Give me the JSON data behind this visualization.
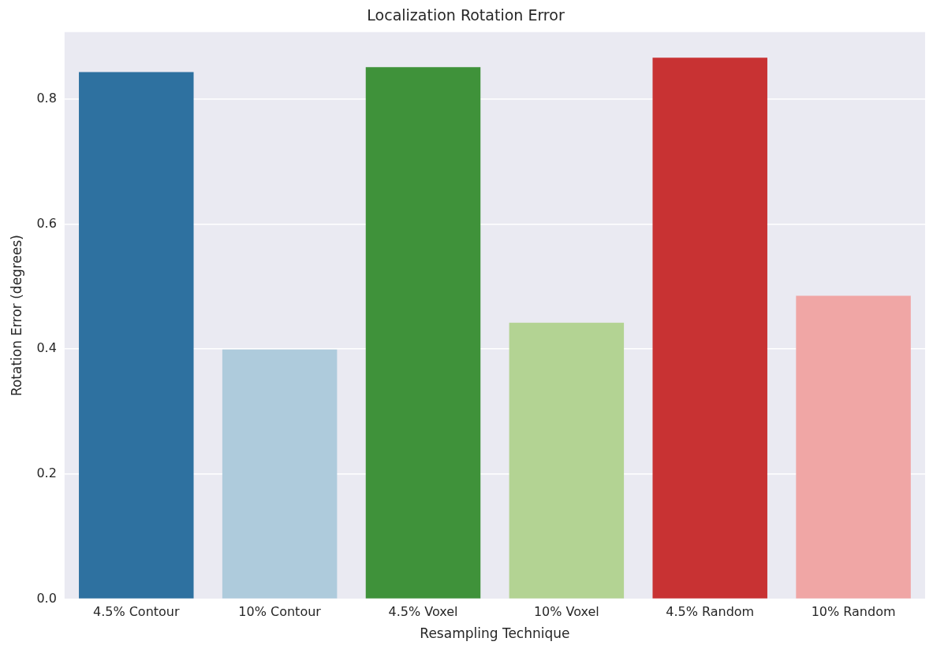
{
  "chart_data": {
    "type": "bar",
    "title": "Localization Rotation Error",
    "xlabel": "Resampling Technique",
    "ylabel": "Rotation Error (degrees)",
    "categories": [
      "4.5% Contour",
      "10% Contour",
      "4.5% Voxel",
      "10% Voxel",
      "4.5% Random",
      "10% Random"
    ],
    "values": [
      0.843,
      0.399,
      0.851,
      0.442,
      0.866,
      0.485
    ],
    "colors": [
      "#2e71a0",
      "#aecbdc",
      "#3f923a",
      "#b3d393",
      "#c83233",
      "#f0a6a5"
    ],
    "ylim": [
      0,
      0.907
    ],
    "yticks": [
      {
        "value": 0,
        "label": "0.0"
      },
      0.2,
      0.4,
      0.6,
      0.8
    ],
    "grid": "y",
    "legend": false
  }
}
